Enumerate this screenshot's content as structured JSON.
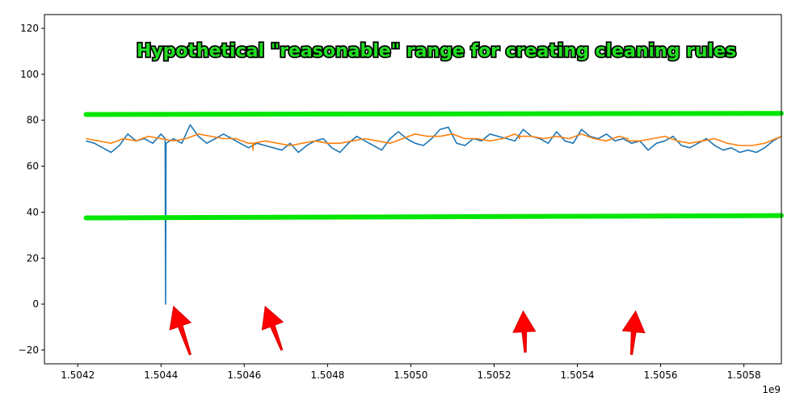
{
  "chart_data": {
    "type": "line",
    "title": "",
    "xlabel": "",
    "ylabel": "",
    "x_scale_label": "1e9",
    "xlim": [
      1.50412,
      1.50589
    ],
    "ylim": [
      -26,
      126
    ],
    "x_ticks": [
      1.5042,
      1.5044,
      1.5046,
      1.5048,
      1.505,
      1.5052,
      1.5054,
      1.5056,
      1.5058
    ],
    "x_tick_labels": [
      "1.5042",
      "1.5044",
      "1.5046",
      "1.5048",
      "1.5050",
      "1.5052",
      "1.5054",
      "1.5056",
      "1.5058"
    ],
    "y_ticks": [
      -20,
      0,
      20,
      40,
      60,
      80,
      100,
      120
    ],
    "y_tick_labels": [
      "−20",
      "0",
      "20",
      "40",
      "60",
      "80",
      "100",
      "120"
    ],
    "grid": false,
    "colors": {
      "series_blue": "#1f77b4",
      "series_orange": "#ff7f0e",
      "range_line": "#00e600",
      "arrow": "#ff0000",
      "annotation_fill": "#22dd22",
      "annotation_stroke": "#000000"
    },
    "series": [
      {
        "color": "#1f77b4",
        "x": [
          1.50422,
          1.50424,
          1.50426,
          1.50428,
          1.5043,
          1.50432,
          1.50434,
          1.50436,
          1.50438,
          1.5044,
          1.50441,
          1.504411,
          1.504412,
          1.50443,
          1.50445,
          1.50447,
          1.50449,
          1.50451,
          1.50453,
          1.50455,
          1.50457,
          1.50459,
          1.50461,
          1.50463,
          1.50465,
          1.50467,
          1.50469,
          1.50471,
          1.50473,
          1.50475,
          1.50477,
          1.50479,
          1.50481,
          1.50483,
          1.50485,
          1.50487,
          1.50489,
          1.50491,
          1.50493,
          1.50495,
          1.50497,
          1.50499,
          1.50501,
          1.50503,
          1.50505,
          1.50507,
          1.50509,
          1.50511,
          1.50513,
          1.50515,
          1.50517,
          1.50519,
          1.50521,
          1.50523,
          1.50525,
          1.50527,
          1.50529,
          1.50531,
          1.50533,
          1.50535,
          1.50537,
          1.50539,
          1.50541,
          1.50543,
          1.50545,
          1.50547,
          1.50549,
          1.50551,
          1.50553,
          1.50555,
          1.50557,
          1.50559,
          1.50561,
          1.50563,
          1.50565,
          1.50567,
          1.50569,
          1.50571,
          1.50573,
          1.50575,
          1.50577,
          1.50579,
          1.50581,
          1.50583,
          1.50585,
          1.50587,
          1.50589
        ],
        "y": [
          71,
          70,
          68,
          66,
          69,
          74,
          71,
          72,
          70,
          74,
          72,
          0,
          70,
          72,
          70,
          78,
          73,
          70,
          72,
          74,
          72,
          70,
          68,
          70,
          69,
          68,
          67,
          70,
          66,
          69,
          71,
          72,
          68,
          66,
          70,
          73,
          71,
          69,
          67,
          72,
          75,
          72,
          70,
          69,
          72,
          76,
          77,
          70,
          69,
          72,
          71,
          74,
          73,
          72,
          71,
          76,
          73,
          72,
          70,
          75,
          71,
          70,
          76,
          73,
          72,
          74,
          71,
          72,
          70,
          71,
          67,
          70,
          71,
          73,
          69,
          68,
          70,
          72,
          69,
          67,
          68,
          66,
          67,
          66,
          68,
          71,
          73
        ]
      },
      {
        "color": "#ff7f0e",
        "x": [
          1.50422,
          1.50425,
          1.50428,
          1.50431,
          1.50434,
          1.50437,
          1.5044,
          1.50443,
          1.50446,
          1.50449,
          1.50452,
          1.50455,
          1.50458,
          1.50461,
          1.50462,
          1.504621,
          1.504622,
          1.50465,
          1.50468,
          1.50471,
          1.50474,
          1.50477,
          1.5048,
          1.50483,
          1.50486,
          1.50489,
          1.50492,
          1.50495,
          1.50498,
          1.50501,
          1.50504,
          1.50507,
          1.5051,
          1.50513,
          1.50516,
          1.50519,
          1.50522,
          1.50525,
          1.50526,
          1.505261,
          1.505262,
          1.50529,
          1.50532,
          1.50535,
          1.50538,
          1.50541,
          1.50544,
          1.50547,
          1.5055,
          1.50552,
          1.505521,
          1.505522,
          1.50555,
          1.50558,
          1.50561,
          1.50564,
          1.50567,
          1.5057,
          1.50573,
          1.50576,
          1.50579,
          1.50582,
          1.50585,
          1.50589
        ],
        "y": [
          72,
          71,
          70,
          72,
          71,
          73,
          72,
          71,
          72,
          74,
          73,
          72,
          72,
          70,
          70,
          67,
          70,
          71,
          70,
          69,
          70,
          71,
          70,
          70,
          71,
          72,
          71,
          70,
          72,
          74,
          73,
          73,
          74,
          72,
          72,
          71,
          72,
          74,
          73,
          72,
          73,
          73,
          72,
          73,
          72,
          74,
          72,
          71,
          73,
          72,
          72,
          71,
          71,
          72,
          73,
          71,
          70,
          71,
          72,
          70,
          69,
          69,
          70,
          73
        ]
      }
    ],
    "range_lines": [
      {
        "x": [
          1.50422,
          1.50589
        ],
        "y": [
          82.5,
          83
        ]
      },
      {
        "x": [
          1.50422,
          1.50589
        ],
        "y": [
          37.5,
          38.5
        ]
      }
    ],
    "arrows": [
      {
        "x_from": 1.50447,
        "y_from": -22,
        "x_to": 1.50443,
        "y_to": -1
      },
      {
        "x_from": 1.50469,
        "y_from": -20,
        "x_to": 1.50465,
        "y_to": -1
      },
      {
        "x_from": 1.505275,
        "y_from": -21,
        "x_to": 1.50527,
        "y_to": -3
      },
      {
        "x_from": 1.50553,
        "y_from": -22,
        "x_to": 1.50554,
        "y_to": -3
      }
    ],
    "annotation": "Hypothetical \"reasonable\" range for creating cleaning rules"
  }
}
